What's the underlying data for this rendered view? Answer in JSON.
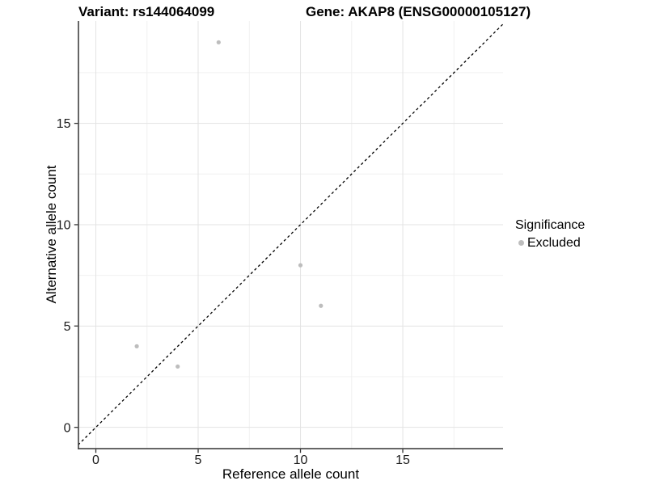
{
  "figure": {
    "background": "#ffffff"
  },
  "chart_data": {
    "type": "scatter",
    "titles": {
      "left": "Variant: rs144064099",
      "right": "Gene: AKAP8 (ENSG00000105127)"
    },
    "xlabel": "Reference allele count",
    "ylabel": "Alternative allele count",
    "xlim": [
      -0.85,
      19.9
    ],
    "ylim": [
      -1.05,
      20.05
    ],
    "x_ticks": [
      0,
      5,
      10,
      15
    ],
    "y_ticks": [
      0,
      5,
      10,
      15
    ],
    "x_minor_ticks": [
      2.5,
      7.5,
      12.5,
      17.5
    ],
    "y_minor_ticks": [
      2.5,
      7.5,
      12.5,
      17.5
    ],
    "grid": true,
    "identity_line": {
      "style": "dashed",
      "slope": 1,
      "intercept": 0,
      "from": -1.05,
      "to": 20.05
    },
    "series": [
      {
        "name": "Excluded",
        "color": "#bdbdbd",
        "points": [
          [
            2,
            4
          ],
          [
            4,
            3
          ],
          [
            6,
            19
          ],
          [
            10,
            8
          ],
          [
            11,
            6
          ]
        ]
      }
    ],
    "legend": {
      "position": "right",
      "title": "Significance",
      "entries": [
        {
          "label": "Excluded",
          "color": "#bdbdbd"
        }
      ]
    },
    "colors": {
      "axis_line": "#333333",
      "tick_mark": "#333333",
      "tick_label": "#1a1a1a",
      "grid_major": "#e3e3e3",
      "grid_minor": "#f0f0f0",
      "identity_line": "#000000",
      "point": "#bdbdbd"
    }
  }
}
